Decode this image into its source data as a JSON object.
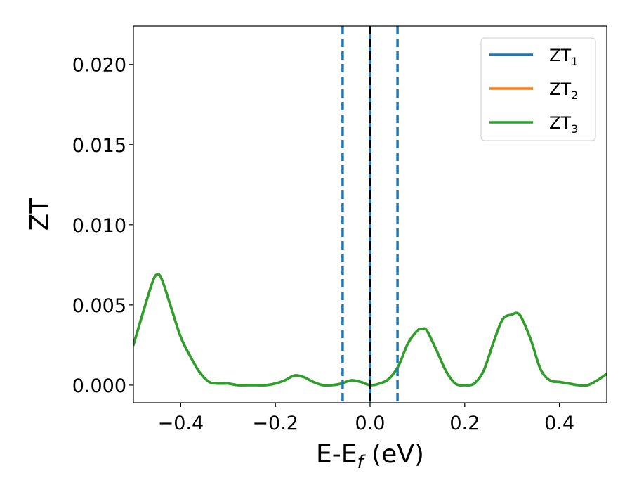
{
  "chart_data": {
    "type": "line",
    "xlabel": "E-E",
    "xlabel_sub": "f",
    "xlabel_unit": " (eV)",
    "ylabel": "ZT",
    "xlim": [
      -0.5,
      0.5
    ],
    "ylim": [
      -0.0011,
      0.0224
    ],
    "grid": false,
    "legend_position": "top-right",
    "xticks": [
      -0.4,
      -0.2,
      0.0,
      0.2,
      0.4
    ],
    "xtick_labels": [
      "−0.4",
      "−0.2",
      "0.0",
      "0.2",
      "0.4"
    ],
    "yticks": [
      0.0,
      0.005,
      0.01,
      0.015,
      0.02
    ],
    "ytick_labels": [
      "0.000",
      "0.005",
      "0.010",
      "0.015",
      "0.020"
    ],
    "vlines": [
      {
        "x": -0.058,
        "style": "dashed",
        "color": "#1f77b4"
      },
      {
        "x": 0.0,
        "style": "solid",
        "color": "#1f77b4"
      },
      {
        "x": 0.0,
        "style": "dashed",
        "color": "#000000"
      },
      {
        "x": 0.058,
        "style": "dashed",
        "color": "#1f77b4"
      }
    ],
    "x": [
      -0.5,
      -0.48,
      -0.46,
      -0.45,
      -0.44,
      -0.42,
      -0.4,
      -0.38,
      -0.36,
      -0.34,
      -0.32,
      -0.3,
      -0.28,
      -0.26,
      -0.24,
      -0.22,
      -0.2,
      -0.18,
      -0.16,
      -0.14,
      -0.12,
      -0.1,
      -0.08,
      -0.06,
      -0.04,
      -0.02,
      0.0,
      0.02,
      0.04,
      0.06,
      0.08,
      0.1,
      0.11,
      0.12,
      0.14,
      0.16,
      0.18,
      0.2,
      0.22,
      0.24,
      0.26,
      0.28,
      0.3,
      0.31,
      0.32,
      0.34,
      0.36,
      0.38,
      0.4,
      0.42,
      0.44,
      0.46,
      0.48,
      0.5
    ],
    "series": [
      {
        "name": "ZT",
        "name_sub": "1",
        "color": "#1f77b4",
        "values": [
          0.0025,
          0.0045,
          0.0064,
          0.0069,
          0.0066,
          0.0048,
          0.003,
          0.0018,
          0.0008,
          0.0002,
          0.0001,
          0.0001,
          0.0,
          0.0,
          0.0,
          0.0,
          0.0001,
          0.0003,
          0.0006,
          0.0005,
          0.0002,
          0.0,
          0.0,
          0.0001,
          0.0003,
          0.0002,
          0.0,
          0.0001,
          0.0004,
          0.0012,
          0.0026,
          0.0034,
          0.0035,
          0.0034,
          0.0022,
          0.0009,
          0.0001,
          0.0,
          0.0001,
          0.0009,
          0.0026,
          0.0041,
          0.0044,
          0.0045,
          0.0042,
          0.0028,
          0.001,
          0.0003,
          0.0002,
          0.0001,
          0.0,
          0.0,
          0.0003,
          0.0007
        ]
      },
      {
        "name": "ZT",
        "name_sub": "2",
        "color": "#ff7f0e",
        "values": [
          0.0025,
          0.0045,
          0.0064,
          0.0069,
          0.0066,
          0.0048,
          0.003,
          0.0018,
          0.0008,
          0.0002,
          0.0001,
          0.0001,
          0.0,
          0.0,
          0.0,
          0.0,
          0.0001,
          0.0003,
          0.0006,
          0.0005,
          0.0002,
          0.0,
          0.0,
          0.0001,
          0.0003,
          0.0002,
          0.0,
          0.0001,
          0.0004,
          0.0012,
          0.0026,
          0.0034,
          0.0035,
          0.0034,
          0.0022,
          0.0009,
          0.0001,
          0.0,
          0.0001,
          0.0009,
          0.0026,
          0.0041,
          0.0044,
          0.0045,
          0.0042,
          0.0028,
          0.001,
          0.0003,
          0.0002,
          0.0001,
          0.0,
          0.0,
          0.0003,
          0.0007
        ]
      },
      {
        "name": "ZT",
        "name_sub": "3",
        "color": "#2ca02c",
        "values": [
          0.0025,
          0.0045,
          0.0064,
          0.0069,
          0.0066,
          0.0048,
          0.003,
          0.0018,
          0.0008,
          0.0002,
          0.0001,
          0.0001,
          0.0,
          0.0,
          0.0,
          0.0,
          0.0001,
          0.0003,
          0.0006,
          0.0005,
          0.0002,
          0.0,
          0.0,
          0.0001,
          0.0003,
          0.0002,
          0.0,
          0.0001,
          0.0004,
          0.0012,
          0.0026,
          0.0034,
          0.0035,
          0.0034,
          0.0022,
          0.0009,
          0.0001,
          0.0,
          0.0001,
          0.0009,
          0.0026,
          0.0041,
          0.0044,
          0.0045,
          0.0042,
          0.0028,
          0.001,
          0.0003,
          0.0002,
          0.0001,
          0.0,
          0.0,
          0.0003,
          0.0007
        ]
      }
    ]
  }
}
